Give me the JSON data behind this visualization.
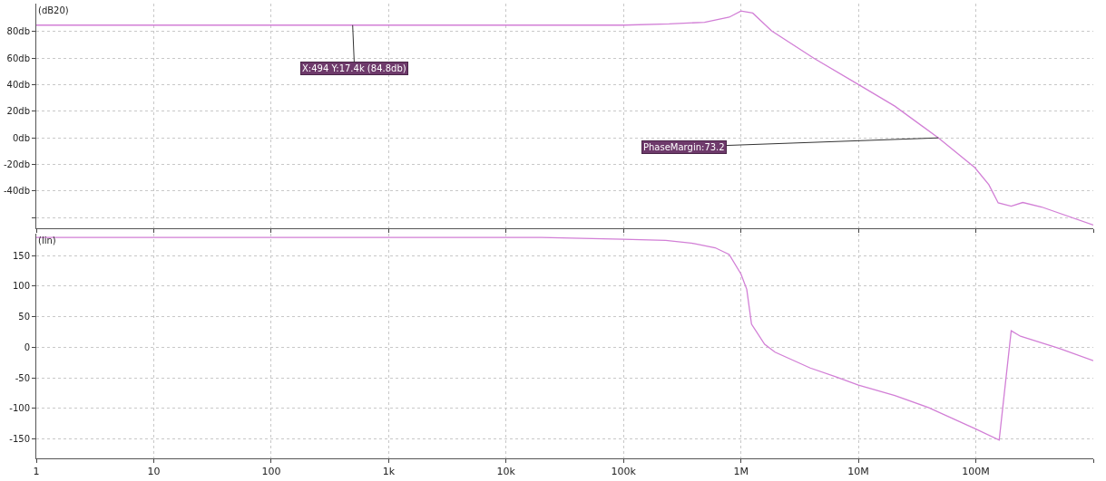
{
  "chart_data": [
    {
      "type": "line",
      "ylabel": "(dB20)",
      "log": "x",
      "grid": true,
      "tick_labels": "y",
      "x": [
        1,
        100000,
        245000,
        490000,
        794000,
        1000000,
        1260000,
        1820000,
        4170000,
        9800000,
        20400000,
        48000000,
        98000000,
        129000000,
        155000000,
        200000000,
        251000000,
        363000000,
        1000000000
      ],
      "series": [
        {
          "color": "#d27fd6",
          "values": [
            84.8,
            84.8,
            85.7,
            87,
            90.8,
            95.4,
            93.9,
            80.5,
            59.9,
            40.6,
            23.9,
            0,
            -22.4,
            -35.2,
            -48.9,
            -51.4,
            -48.6,
            -52,
            -65.6
          ]
        }
      ],
      "xlim": [
        1,
        1000000000
      ],
      "xticks": [
        {
          "value": 1,
          "label": null
        },
        {
          "value": 10,
          "label": null
        },
        {
          "value": 100,
          "label": null
        },
        {
          "value": 1000,
          "label": null
        },
        {
          "value": 10000,
          "label": null
        },
        {
          "value": 100000,
          "label": null
        },
        {
          "value": 1000000,
          "label": null
        },
        {
          "value": 10000000,
          "label": null
        },
        {
          "value": 100000000,
          "label": null
        },
        {
          "value": 1000000000,
          "label": null
        }
      ],
      "ylim": [
        -68,
        101
      ],
      "yticks": [
        {
          "value": -60,
          "label": null
        },
        {
          "value": -40,
          "label": "-40db"
        },
        {
          "value": -20,
          "label": "-20db"
        },
        {
          "value": 0,
          "label": "0db"
        },
        {
          "value": 20,
          "label": "20db"
        },
        {
          "value": 40,
          "label": "40db"
        },
        {
          "value": 60,
          "label": "60db"
        },
        {
          "value": 80,
          "label": "80db"
        }
      ],
      "annotations": [
        {
          "text": "X:494 Y:17.4k (84.8db)",
          "x": 494,
          "y": 84.8
        },
        {
          "text": "PhaseMargin:73.2",
          "x": 48000000,
          "y": 0
        }
      ]
    },
    {
      "type": "line",
      "ylabel": "(lin)",
      "log": "x",
      "grid": true,
      "x": [
        1,
        20000,
        100000,
        229000,
        398000,
        603000,
        794000,
        1000000,
        1120000,
        1230000,
        1590000,
        1950000,
        3890000,
        6310000,
        10000000,
        20400000,
        39800000,
        100000000,
        158000000,
        200000000,
        240000000,
        513000000,
        1000000000
      ],
      "series": [
        {
          "color": "#d27fd6",
          "values": [
            180,
            180,
            177,
            175,
            170,
            163,
            152,
            120,
            95,
            38,
            5,
            -8,
            -34,
            -48,
            -62,
            -79,
            -99,
            -134,
            -152,
            27,
            18,
            -2,
            -22
          ]
        }
      ],
      "xlim": [
        1,
        1000000000
      ],
      "xticks": [
        1,
        10,
        100,
        {
          "value": 1000,
          "label": "1k"
        },
        {
          "value": 10000,
          "label": "10k"
        },
        {
          "value": 100000,
          "label": "100k"
        },
        {
          "value": 1000000,
          "label": "1M"
        },
        {
          "value": 10000000,
          "label": "10M"
        },
        {
          "value": 100000000,
          "label": "100M"
        },
        {
          "value": 1000000000,
          "label": null
        }
      ],
      "ylim": [
        -182,
        186
      ],
      "yticks": [
        -150,
        -100,
        -50,
        0,
        50,
        100,
        150
      ]
    }
  ]
}
